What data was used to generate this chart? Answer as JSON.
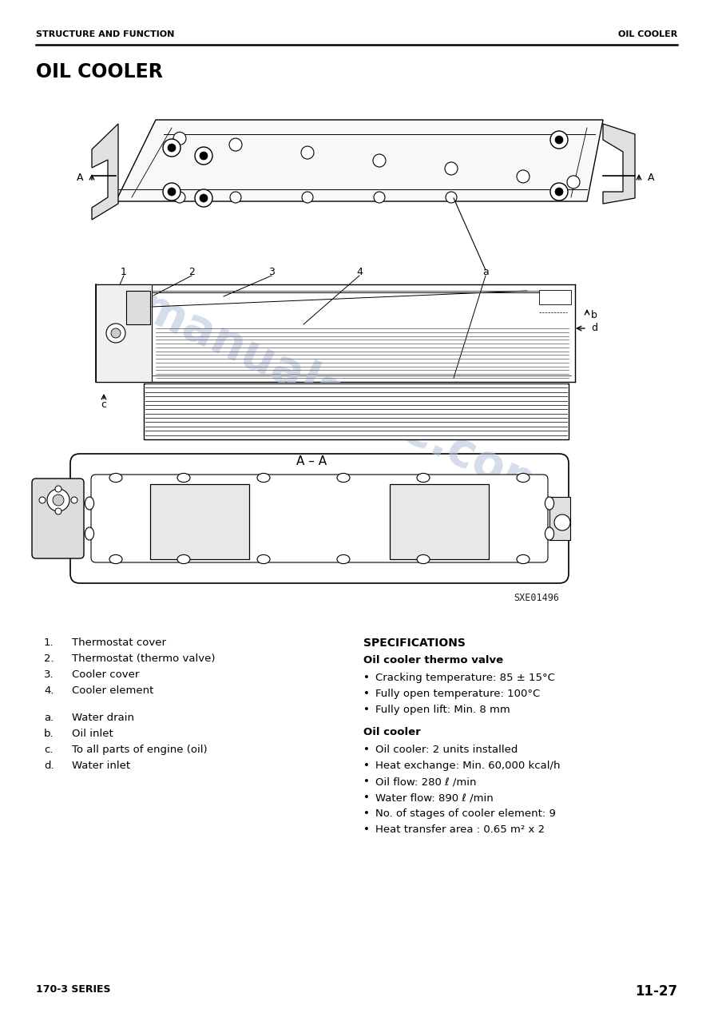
{
  "page_title": "OIL COOLER",
  "header_left": "STRUCTURE AND FUNCTION",
  "header_right": "OIL COOLER",
  "footer_left": "170-3 SERIES",
  "footer_right": "11-27",
  "diagram_label": "A – A",
  "figure_code": "SXE01496",
  "numbered_items": [
    [
      "1.",
      "Thermostat cover"
    ],
    [
      "2.",
      "Thermostat (thermo valve)"
    ],
    [
      "3.",
      "Cooler cover"
    ],
    [
      "4.",
      "Cooler element"
    ]
  ],
  "lettered_items": [
    [
      "a.",
      "Water drain"
    ],
    [
      "b.",
      "Oil inlet"
    ],
    [
      "c.",
      "To all parts of engine (oil)"
    ],
    [
      "d.",
      "Water inlet"
    ]
  ],
  "spec_title": "SPECIFICATIONS",
  "spec_sub1": "Oil cooler thermo valve",
  "spec_bullets1": [
    "Cracking temperature: 85 ± 15°C",
    "Fully open temperature: 100°C",
    "Fully open lift: Min. 8 mm"
  ],
  "spec_sub2": "Oil cooler",
  "spec_bullets2": [
    "Oil cooler: 2 units installed",
    "Heat exchange: Min. 60,000 kcal/h",
    "Oil flow: 280 ℓ /min",
    "Water flow: 890 ℓ /min",
    "No. of stages of cooler element: 9",
    "Heat transfer area : 0.65 m² x 2"
  ],
  "bg_color": "#ffffff",
  "text_color": "#000000",
  "header_line_color": "#000000",
  "watermark_color": "#b8c4dc",
  "watermark_text": "manualsrive.com"
}
